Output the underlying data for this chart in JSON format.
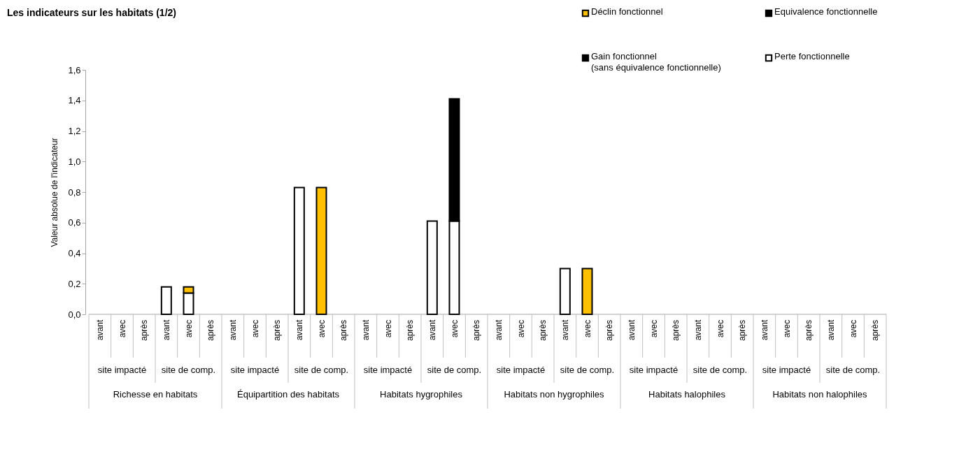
{
  "chart_data": {
    "type": "bar",
    "stacked": true,
    "title": "Les indicateurs sur les habitats (1/2)",
    "ylabel": "Valeur absolue de l'indicateur",
    "categories": [
      "avant",
      "avec",
      "après",
      "avant",
      "avec",
      "après",
      "avant",
      "avec",
      "après",
      "avant",
      "avec",
      "après",
      "avant",
      "avec",
      "après",
      "avant",
      "avec",
      "après",
      "avant",
      "avec",
      "après",
      "avant",
      "avec",
      "après",
      "avant",
      "avec",
      "après",
      "avant",
      "avec",
      "après",
      "avant",
      "avec",
      "après",
      "avant",
      "avec",
      "après"
    ],
    "annotations": [
      "site impacté",
      "site de comp.",
      "site impacté",
      "site de comp.",
      "site impacté",
      "site de comp.",
      "site impacté",
      "site de comp.",
      "site impacté",
      "site de comp.",
      "site impacté",
      "site de comp.",
      "Richesse en habitats",
      "Équipartition des habitats",
      "Habitats hygrophiles",
      "Habitats non hygrophiles",
      "Habitats halophiles",
      "Habitats non halophiles"
    ],
    "series": [
      {
        "color": "#ffffff",
        "values": [
          null,
          null,
          null,
          0.18,
          0.14,
          null,
          null,
          null,
          null,
          0.83,
          null,
          null,
          null,
          null,
          null,
          0.61,
          0.61,
          null,
          null,
          null,
          null,
          0.3,
          null,
          null,
          null,
          null,
          null,
          null,
          null,
          null,
          null,
          null,
          null,
          null,
          null,
          null
        ]
      },
      {
        "name": "Déclin fonctionnel",
        "color": "#ffc000",
        "values": [
          null,
          null,
          null,
          null,
          0.04,
          null,
          null,
          null,
          null,
          null,
          0.83,
          null,
          null,
          null,
          null,
          null,
          null,
          null,
          null,
          null,
          null,
          null,
          0.3,
          null,
          null,
          null,
          null,
          null,
          null,
          null,
          null,
          null,
          null,
          null,
          null,
          null
        ]
      },
      {
        "name": "Equivalence fonctionnelle",
        "color": "#000000",
        "values": [
          null,
          null,
          null,
          null,
          null,
          null,
          null,
          null,
          null,
          null,
          null,
          null,
          null,
          null,
          null,
          null,
          null,
          null,
          null,
          null,
          null,
          null,
          null,
          null,
          null,
          null,
          null,
          null,
          null,
          null,
          null,
          null,
          null,
          null,
          null,
          null
        ]
      },
      {
        "name": "Gain fonctionnel\n(sans équivalence fonctionnelle)",
        "color": "#000000",
        "values": [
          null,
          null,
          null,
          null,
          null,
          null,
          null,
          null,
          null,
          null,
          null,
          null,
          null,
          null,
          null,
          null,
          0.8,
          null,
          null,
          null,
          null,
          null,
          null,
          null,
          null,
          null,
          null,
          null,
          null,
          null,
          null,
          null,
          null,
          null,
          null,
          null
        ]
      },
      {
        "name": "Perte fonctionnelle",
        "color": "#ffffff",
        "values": [
          null,
          null,
          null,
          null,
          null,
          null,
          null,
          null,
          null,
          null,
          null,
          null,
          null,
          null,
          null,
          null,
          null,
          null,
          null,
          null,
          null,
          null,
          null,
          null,
          null,
          null,
          null,
          null,
          null,
          null,
          null,
          null,
          null,
          null,
          null,
          null
        ]
      }
    ],
    "ylim": [
      0,
      1.6
    ],
    "yticks": [
      {
        "value": 0,
        "label": "0,0"
      },
      {
        "value": 0.2,
        "label": "0,2"
      },
      {
        "value": 0.4,
        "label": "0,4"
      },
      {
        "value": 0.6,
        "label": "0,6"
      },
      {
        "value": 0.8,
        "label": "0,8"
      },
      {
        "value": 1.0,
        "label": "1,0"
      },
      {
        "value": 1.2,
        "label": "1,2"
      },
      {
        "value": 1.4,
        "label": "1,4"
      },
      {
        "value": 1.6,
        "label": "1,6"
      }
    ],
    "grid": false,
    "legend": "top right"
  }
}
